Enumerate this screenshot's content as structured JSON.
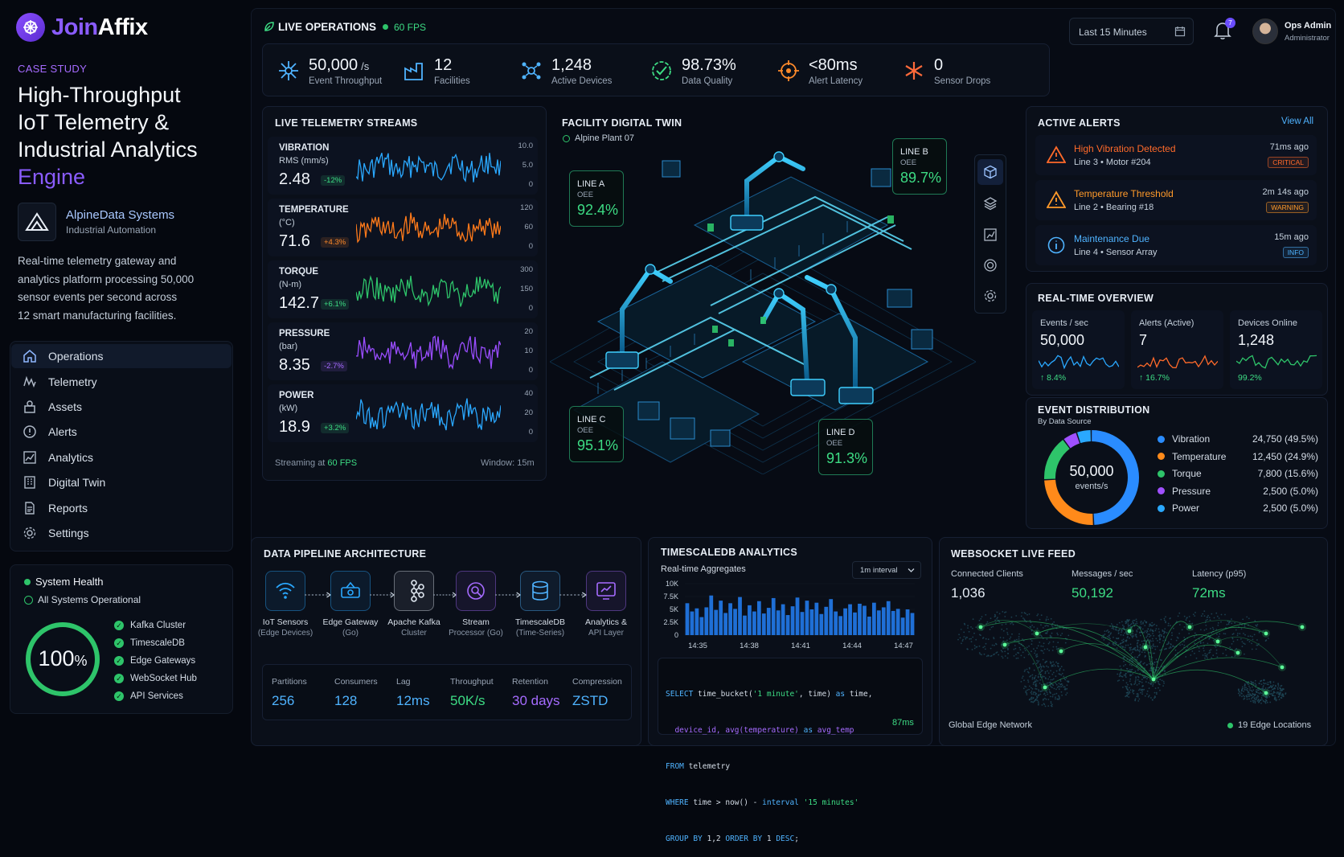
{
  "brand": {
    "name_a": "Join",
    "name_b": "Affix"
  },
  "case_study": {
    "kicker": "CASE STUDY",
    "title_lines": [
      "High-Throughput",
      "IoT Telemetry &",
      "Industrial Analytics"
    ],
    "title_accent": "Engine",
    "company": "AlpineData Systems",
    "company_sub": "Industrial Automation",
    "description_lines": [
      "Real-time telemetry gateway and",
      "analytics platform processing 50,000",
      "sensor events per second across",
      "12 smart manufacturing facilities."
    ]
  },
  "nav": [
    {
      "label": "Operations",
      "icon": "home-icon"
    },
    {
      "label": "Telemetry",
      "icon": "telemetry-icon"
    },
    {
      "label": "Assets",
      "icon": "assets-icon"
    },
    {
      "label": "Alerts",
      "icon": "alert-circle-icon"
    },
    {
      "label": "Analytics",
      "icon": "analytics-icon"
    },
    {
      "label": "Digital Twin",
      "icon": "building-icon"
    },
    {
      "label": "Reports",
      "icon": "document-icon"
    },
    {
      "label": "Settings",
      "icon": "gear-icon"
    }
  ],
  "health": {
    "title": "System Health",
    "status": "All Systems Operational",
    "percent": "100",
    "percent_sign": "%",
    "services": [
      "Kafka Cluster",
      "TimescaleDB",
      "Edge Gateways",
      "WebSocket Hub",
      "API Services"
    ]
  },
  "header": {
    "live_label": "LIVE OPERATIONS",
    "fps": "60 FPS",
    "time_range": "Last 15 Minutes",
    "notif_count": "7",
    "user_name": "Ops Admin",
    "user_role": "Administrator"
  },
  "kpis": [
    {
      "value": "50,000",
      "unit": "/s",
      "label": "Event Throughput",
      "icon": "throughput-icon",
      "color": "#4fb3ff"
    },
    {
      "value": "12",
      "unit": "",
      "label": "Facilities",
      "icon": "factory-icon",
      "color": "#4fb3ff"
    },
    {
      "value": "1,248",
      "unit": "",
      "label": "Active Devices",
      "icon": "devices-icon",
      "color": "#4fb3ff"
    },
    {
      "value": "98.73%",
      "unit": "",
      "label": "Data Quality",
      "icon": "check-badge-icon",
      "color": "#3ddc84"
    },
    {
      "value": "<80ms",
      "unit": "",
      "label": "Alert Latency",
      "icon": "target-icon",
      "color": "#ff8a2a"
    },
    {
      "value": "0",
      "unit": "",
      "label": "Sensor Drops",
      "icon": "asterisk-icon",
      "color": "#ff6a3a"
    }
  ],
  "telemetry": {
    "title": "LIVE TELEMETRY STREAMS",
    "streams": [
      {
        "name": "VIBRATION",
        "unit": "RMS (mm/s)",
        "value": "2.48",
        "change": "-12%",
        "change_color": "#3ddc84",
        "color": "#2aa8ff",
        "ticks": [
          "10.0",
          "5.0",
          "0"
        ]
      },
      {
        "name": "TEMPERATURE",
        "unit": "(°C)",
        "value": "71.6",
        "change": "+4.3%",
        "change_color": "#ff8a2a",
        "color": "#ff7a1a",
        "ticks": [
          "120",
          "60",
          "0"
        ]
      },
      {
        "name": "TORQUE",
        "unit": "(N-m)",
        "value": "142.7",
        "change": "+6.1%",
        "change_color": "#3ddc84",
        "color": "#2ec46a",
        "ticks": [
          "300",
          "150",
          "0"
        ]
      },
      {
        "name": "PRESSURE",
        "unit": "(bar)",
        "value": "8.35",
        "change": "-2.7%",
        "change_color": "#a56bff",
        "color": "#9a4dff",
        "ticks": [
          "20",
          "10",
          "0"
        ]
      },
      {
        "name": "POWER",
        "unit": "(kW)",
        "value": "18.9",
        "change": "+3.2%",
        "change_color": "#3ddc84",
        "color": "#2aa8ff",
        "ticks": [
          "40",
          "20",
          "0"
        ]
      }
    ],
    "footer_left": "Streaming at ",
    "footer_fps": "60 FPS",
    "footer_right": "Window: 15m"
  },
  "twin": {
    "title": "FACILITY DIGITAL TWIN",
    "plant": "Alpine Plant 07",
    "lines": [
      {
        "name": "LINE A",
        "metric": "OEE",
        "value": "92.4%"
      },
      {
        "name": "LINE B",
        "metric": "OEE",
        "value": "89.7%"
      },
      {
        "name": "LINE C",
        "metric": "OEE",
        "value": "95.1%"
      },
      {
        "name": "LINE D",
        "metric": "OEE",
        "value": "91.3%"
      }
    ]
  },
  "alerts": {
    "title": "ACTIVE ALERTS",
    "view_all": "View All",
    "items": [
      {
        "title": "High Vibration Detected",
        "sub": "Line 3 • Motor #204",
        "time": "71ms ago",
        "badge": "CRITICAL",
        "color": "#ff6a2a"
      },
      {
        "title": "Temperature Threshold",
        "sub": "Line 2 • Bearing #18",
        "time": "2m 14s ago",
        "badge": "WARNING",
        "color": "#ff9a2a"
      },
      {
        "title": "Maintenance Due",
        "sub": "Line 4 • Sensor Array",
        "time": "15m ago",
        "badge": "INFO",
        "color": "#4fb3ff"
      }
    ]
  },
  "overview": {
    "title": "REAL-TIME OVERVIEW",
    "cards": [
      {
        "label": "Events / sec",
        "value": "50,000",
        "pct": "↑ 8.4%",
        "color": "#2aa8ff"
      },
      {
        "label": "Alerts (Active)",
        "value": "7",
        "pct": "↑ 16.7%",
        "color": "#ff6a2a"
      },
      {
        "label": "Devices Online",
        "value": "1,248",
        "pct": "99.2%",
        "color": "#2ec46a"
      }
    ]
  },
  "distribution": {
    "title": "EVENT DISTRIBUTION",
    "subtitle": "By Data Source",
    "center_value": "50,000",
    "center_label": "events/s",
    "items": [
      {
        "name": "Vibration",
        "value": "24,750 (49.5%)",
        "share": 49.5,
        "color": "#2a8cff"
      },
      {
        "name": "Temperature",
        "value": "12,450 (24.9%)",
        "share": 24.9,
        "color": "#ff8a1a"
      },
      {
        "name": "Torque",
        "value": "7,800 (15.6%)",
        "share": 15.6,
        "color": "#2ec46a"
      },
      {
        "name": "Pressure",
        "value": "2,500 (5.0%)",
        "share": 5.0,
        "color": "#a050ff"
      },
      {
        "name": "Power",
        "value": "2,500 (5.0%)",
        "share": 5.0,
        "color": "#2aa8ff"
      }
    ]
  },
  "pipeline": {
    "title": "DATA PIPELINE ARCHITECTURE",
    "steps": [
      {
        "a": "IoT Sensors",
        "b": "(Edge Devices)",
        "icon": "wifi-icon",
        "color": "#2aa8ff"
      },
      {
        "a": "Edge Gateway",
        "b": "(Go)",
        "icon": "router-icon",
        "color": "#2aa8ff"
      },
      {
        "a": "Apache Kafka",
        "b": "Cluster",
        "icon": "kafka-icon",
        "color": "#dfe7f0"
      },
      {
        "a": "Stream",
        "b": "Processor (Go)",
        "icon": "processor-icon",
        "color": "#a56bff"
      },
      {
        "a": "TimescaleDB",
        "b": "(Time-Series)",
        "icon": "database-icon",
        "color": "#4fb3ff"
      },
      {
        "a": "Analytics &",
        "b": "API Layer",
        "icon": "api-icon",
        "color": "#a56bff"
      }
    ],
    "stats": [
      {
        "label": "Partitions",
        "value": "256",
        "color": "#4fb3ff"
      },
      {
        "label": "Consumers",
        "value": "128",
        "color": "#4fb3ff"
      },
      {
        "label": "Lag",
        "value": "12ms",
        "color": "#4fb3ff"
      },
      {
        "label": "Throughput",
        "value": "50K/s",
        "color": "#3ddc84"
      },
      {
        "label": "Retention",
        "value": "30 days",
        "color": "#a56bff"
      },
      {
        "label": "Compression",
        "value": "ZSTD",
        "color": "#4fb3ff"
      }
    ]
  },
  "timescale": {
    "title": "TIMESCALEDB ANALYTICS",
    "subtitle": "Real-time Aggregates",
    "interval": "1m interval",
    "sql_lines": [
      "SELECT time_bucket('1 minute', time) as time,",
      "  device_id, avg(temperature) as avg_temp",
      "FROM telemetry",
      "WHERE time > now() - interval '15 minutes'",
      "GROUP BY 1,2 ORDER BY 1 DESC;"
    ],
    "query_time": "87ms"
  },
  "chart_data": {
    "type": "bar",
    "title": "",
    "ytick_labels": [
      "10K",
      "7.5K",
      "5K",
      "2.5K",
      "0"
    ],
    "xtick_labels": [
      "14:35",
      "14:38",
      "14:41",
      "14:44",
      "14:47"
    ],
    "ylim": [
      0,
      10000
    ],
    "values": [
      6200,
      4600,
      5200,
      3500,
      5400,
      7700,
      4900,
      6700,
      4300,
      6200,
      5100,
      7400,
      3800,
      5800,
      4600,
      6600,
      4200,
      5300,
      7200,
      4800,
      6000,
      3900,
      5600,
      7300,
      4500,
      6700,
      5000,
      6300,
      4100,
      5500,
      7000,
      4600,
      3700,
      5200,
      6000,
      4400,
      6100,
      5700,
      3600,
      6300,
      4800,
      5400,
      6600,
      4700,
      5100,
      3400,
      5000,
      4300
    ]
  },
  "websocket": {
    "title": "WEBSOCKET LIVE FEED",
    "stats": [
      {
        "label": "Connected Clients",
        "value": "1,036",
        "color": "#e6edf5"
      },
      {
        "label": "Messages / sec",
        "value": "50,192",
        "color": "#3ddc84"
      },
      {
        "label": "Latency (p95)",
        "value": "72ms",
        "color": "#3ddc84"
      }
    ],
    "footer_left": "Global Edge Network",
    "footer_right": "19 Edge Locations"
  }
}
